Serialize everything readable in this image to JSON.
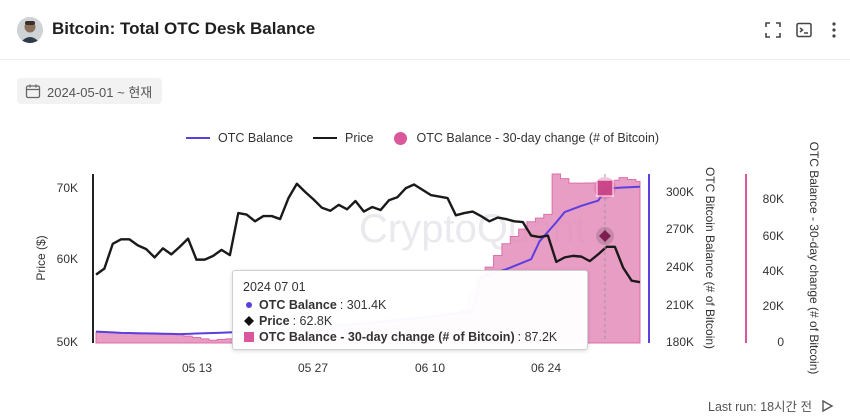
{
  "header": {
    "title": "Bitcoin: Total OTC Desk Balance"
  },
  "filters": {
    "date_range": "2024-05-01 ~ 현재"
  },
  "legend": {
    "otc_balance": "OTC Balance",
    "price": "Price",
    "change": "OTC Balance - 30-day change (# of Bitcoin)"
  },
  "axes": {
    "left_title": "Price ($)",
    "left_ticks": [
      "70K",
      "60K",
      "50K"
    ],
    "right1_title": "OTC Bitcoin Balance (# of Bitcoin)",
    "right1_ticks": [
      "300K",
      "270K",
      "240K",
      "210K",
      "180K"
    ],
    "right2_title": "OTC Balance - 30-day change (# of Bitcoin)",
    "right2_ticks": [
      "80K",
      "60K",
      "40K",
      "20K",
      "0"
    ],
    "x_ticks": [
      "05 13",
      "05 27",
      "06 10",
      "06 24"
    ]
  },
  "watermark": "CryptoQuant",
  "tooltip": {
    "date": "2024 07 01",
    "otc_label": "OTC Balance",
    "otc_value": "301.4K",
    "price_label": "Price",
    "price_value": "62.8K",
    "change_label": "OTC Balance - 30-day change (# of Bitcoin)",
    "change_value": "87.2K"
  },
  "footer": {
    "last_run": "Last run: 18시간 전"
  },
  "colors": {
    "otc_balance": "#5b3fe0",
    "price": "#1a1a1a",
    "change": "#d9579a",
    "change_fill": "#e58dbb"
  },
  "chart_data": {
    "type": "line",
    "x_start": "2024-05-04",
    "x_end": "2024-07-04",
    "x_ticks": [
      "05 13",
      "05 27",
      "06 10",
      "06 24"
    ],
    "series": [
      {
        "name": "Price",
        "axis": "left",
        "ylim": [
          50000,
          72500
        ],
        "values": [
          [
            0,
            59100
          ],
          [
            1,
            59900
          ],
          [
            2,
            63200
          ],
          [
            3,
            63800
          ],
          [
            4,
            63800
          ],
          [
            5,
            63000
          ],
          [
            6,
            62500
          ],
          [
            7,
            61400
          ],
          [
            8,
            62600
          ],
          [
            9,
            61800
          ],
          [
            10,
            62800
          ],
          [
            11,
            63900
          ],
          [
            12,
            61100
          ],
          [
            13,
            61100
          ],
          [
            14,
            61600
          ],
          [
            15,
            62400
          ],
          [
            16,
            61700
          ],
          [
            17,
            67300
          ],
          [
            18,
            67100
          ],
          [
            19,
            66200
          ],
          [
            20,
            66900
          ],
          [
            21,
            66900
          ],
          [
            22,
            66500
          ],
          [
            23,
            69300
          ],
          [
            24,
            71200
          ],
          [
            25,
            70100
          ],
          [
            26,
            69100
          ],
          [
            27,
            68000
          ],
          [
            28,
            67600
          ],
          [
            29,
            68400
          ],
          [
            30,
            67800
          ],
          [
            31,
            68900
          ],
          [
            32,
            67500
          ],
          [
            33,
            68100
          ],
          [
            34,
            67700
          ],
          [
            35,
            69000
          ],
          [
            36,
            69400
          ],
          [
            37,
            70600
          ],
          [
            38,
            71100
          ],
          [
            39,
            70400
          ],
          [
            40,
            69700
          ],
          [
            41,
            69500
          ],
          [
            42,
            69300
          ],
          [
            43,
            67000
          ],
          [
            44,
            67300
          ],
          [
            45,
            67500
          ],
          [
            46,
            66900
          ],
          [
            47,
            66200
          ],
          [
            48,
            66700
          ],
          [
            49,
            66500
          ],
          [
            50,
            66200
          ],
          [
            51,
            66100
          ],
          [
            52,
            64300
          ],
          [
            53,
            64100
          ],
          [
            54,
            64300
          ],
          [
            55,
            60800
          ],
          [
            56,
            61400
          ],
          [
            57,
            61600
          ],
          [
            58,
            61500
          ],
          [
            59,
            60900
          ],
          [
            60,
            61800
          ],
          [
            61,
            62800
          ],
          [
            62,
            62800
          ],
          [
            63,
            60000
          ],
          [
            64,
            58300
          ],
          [
            65,
            58100
          ]
        ]
      },
      {
        "name": "OTC Balance",
        "axis": "right1",
        "ylim": [
          180000,
          313000
        ],
        "values": [
          [
            0,
            189000
          ],
          [
            3,
            188000
          ],
          [
            10,
            187000
          ],
          [
            19,
            189000
          ],
          [
            27,
            193000
          ],
          [
            35,
            197000
          ],
          [
            45,
            205000
          ],
          [
            46,
            232000
          ],
          [
            49,
            238000
          ],
          [
            52,
            246000
          ],
          [
            53,
            260000
          ],
          [
            55,
            275000
          ],
          [
            56,
            283000
          ],
          [
            58,
            288000
          ],
          [
            60,
            292000
          ],
          [
            61,
            301400
          ],
          [
            62,
            302000
          ],
          [
            65,
            303000
          ]
        ]
      },
      {
        "name": "OTC Balance - 30-day change (# of Bitcoin)",
        "axis": "right2",
        "ylim": [
          0,
          92000
        ],
        "values": [
          [
            0,
            6000
          ],
          [
            5,
            5000
          ],
          [
            10,
            4500
          ],
          [
            14,
            1500
          ],
          [
            18,
            3000
          ],
          [
            27,
            8000
          ],
          [
            35,
            12500
          ],
          [
            41,
            15000
          ],
          [
            44,
            18000
          ],
          [
            46,
            35000
          ],
          [
            49,
            54000
          ],
          [
            52,
            66000
          ],
          [
            54,
            70000
          ],
          [
            55,
            92000
          ],
          [
            57,
            87000
          ],
          [
            61,
            87200
          ],
          [
            63,
            90000
          ],
          [
            65,
            88000
          ]
        ]
      }
    ]
  }
}
